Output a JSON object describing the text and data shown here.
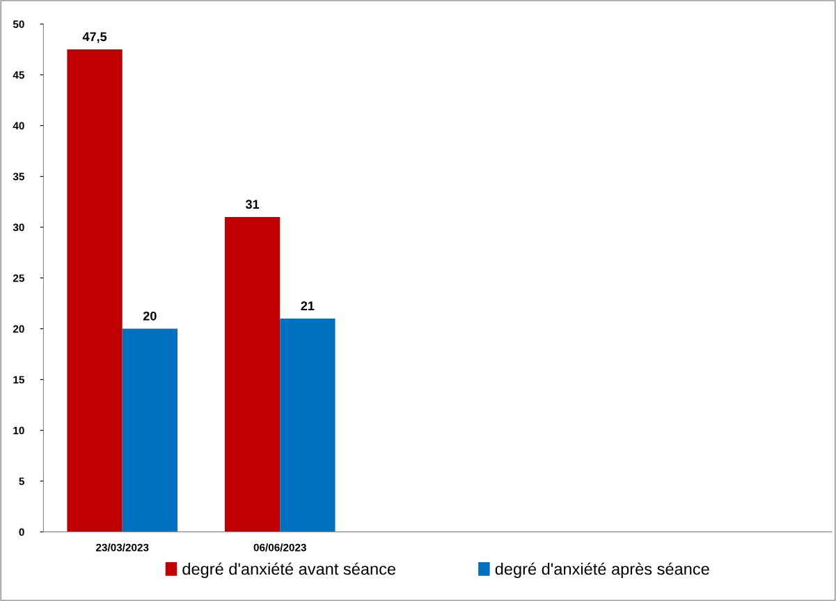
{
  "chart_data": {
    "type": "bar",
    "categories": [
      "23/03/2023",
      "06/06/2023",
      null,
      null,
      null
    ],
    "series": [
      {
        "name": "degré d'anxiété avant séance",
        "color": "#c00000",
        "values": [
          47.5,
          31,
          null,
          null,
          null
        ],
        "value_labels": [
          "47,5",
          "31",
          null,
          null,
          null
        ]
      },
      {
        "name": "degré d'anxiété après séance",
        "color": "#0070c0",
        "values": [
          20,
          21,
          null,
          null,
          null
        ],
        "value_labels": [
          "20",
          "21",
          null,
          null,
          null
        ]
      }
    ],
    "ylim": [
      0,
      50
    ],
    "yticks": [
      0,
      5,
      10,
      15,
      20,
      25,
      30,
      35,
      40,
      45,
      50
    ],
    "grid": false,
    "legend": "bottom"
  }
}
